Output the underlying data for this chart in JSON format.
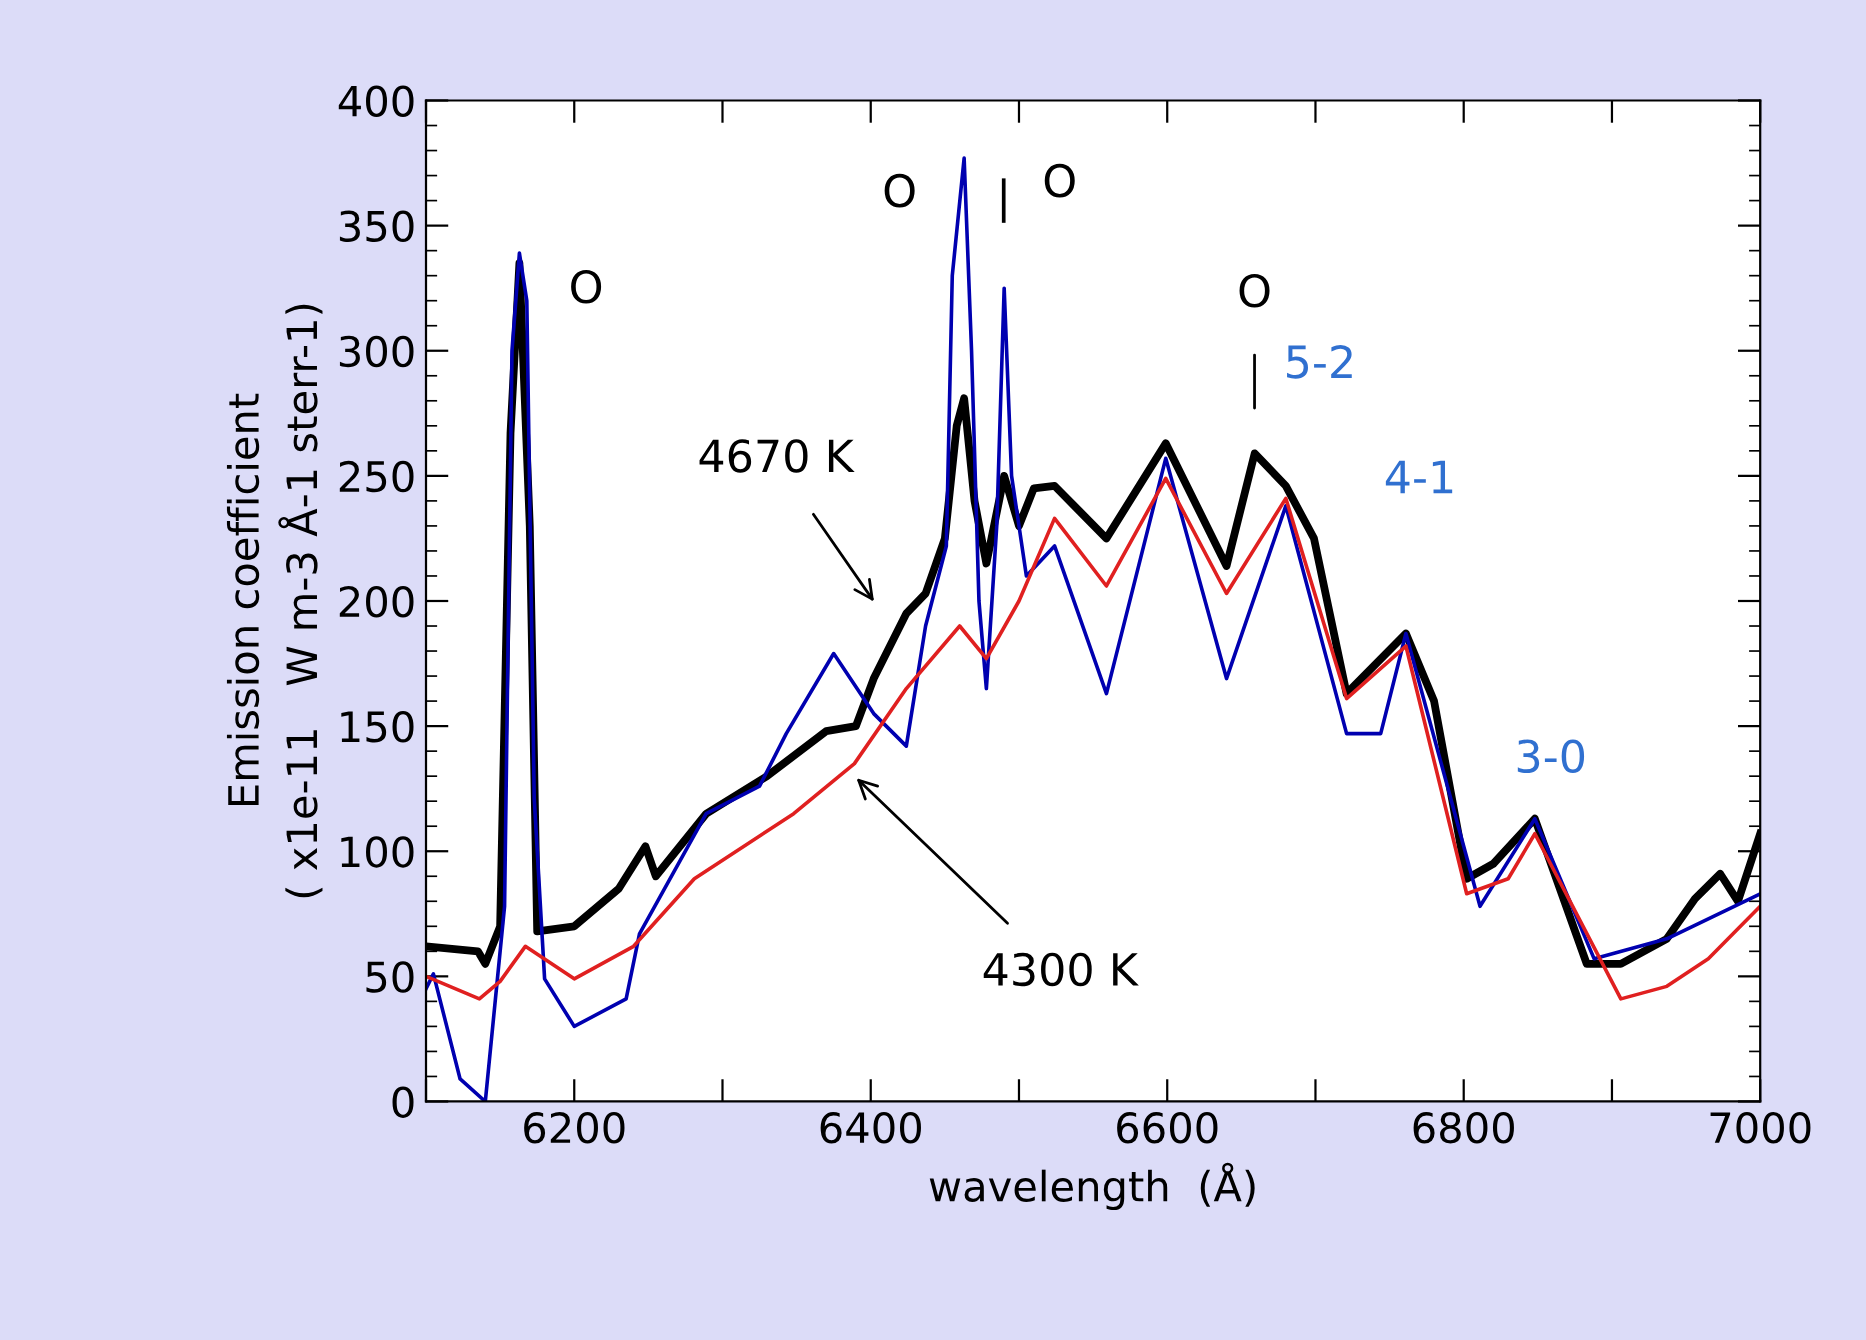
{
  "chart_data": {
    "type": "line",
    "xlabel": "wavelength  (Å)",
    "ylabel": "Emission coefficient\n( x1e-11   W m-3 Å-1 sterr-1)",
    "xlim": [
      6100,
      7000
    ],
    "ylim": [
      0,
      400
    ],
    "xticks": [
      {
        "value": 6100,
        "label": null
      },
      6200,
      {
        "value": 6300,
        "label": null
      },
      6400,
      {
        "value": 6500,
        "label": null
      },
      6600,
      {
        "value": 6700,
        "label": null
      },
      6800,
      {
        "value": 6900,
        "label": null
      },
      7000
    ],
    "yticks": [
      0,
      50,
      100,
      150,
      200,
      250,
      300,
      350,
      400
    ],
    "grid": false,
    "legend": false,
    "marker": "none",
    "line_style": "solid",
    "series": [
      {
        "color": "#000000",
        "x": [
          6100,
          6135,
          6140,
          6150,
          6157,
          6163,
          6170,
          6175,
          6200,
          6230,
          6248,
          6255,
          6289,
          6330,
          6370,
          6390,
          6402,
          6424,
          6437,
          6450,
          6458,
          6463,
          6470,
          6478,
          6490,
          6500,
          6510,
          6524,
          6559,
          6599,
          6640,
          6659,
          6680,
          6699,
          6721,
          6761,
          6780,
          6802,
          6820,
          6848,
          6883,
          6906,
          6937,
          6956,
          6973,
          6985,
          7000
        ],
        "values": [
          62,
          60,
          55,
          70,
          267,
          335,
          230,
          68,
          70,
          85,
          102,
          90,
          115,
          130,
          148,
          150,
          169,
          195,
          203,
          225,
          270,
          281,
          240,
          215,
          250,
          230,
          245,
          246,
          225,
          263,
          214,
          259,
          246,
          225,
          163,
          187,
          160,
          89,
          95,
          113,
          55,
          55,
          65,
          81,
          91,
          80,
          107
        ]
      },
      {
        "color": "#0000b0",
        "x": [
          6100,
          6105,
          6123,
          6140,
          6153,
          6158,
          6163,
          6168,
          6173,
          6180,
          6200,
          6235,
          6244,
          6289,
          6325,
          6343,
          6375,
          6402,
          6424,
          6437,
          6451,
          6455,
          6463,
          6468,
          6473,
          6478,
          6485,
          6490,
          6495,
          6505,
          6524,
          6559,
          6599,
          6640,
          6680,
          6721,
          6744,
          6761,
          6811,
          6848,
          6888,
          6937,
          7000
        ],
        "values": [
          45,
          51,
          9,
          0,
          78,
          300,
          339,
          320,
          121,
          49,
          30,
          41,
          67,
          115,
          126,
          147,
          179,
          155,
          142,
          190,
          222,
          330,
          377,
          300,
          200,
          165,
          230,
          325,
          250,
          210,
          222,
          163,
          257,
          169,
          238,
          147,
          147,
          187,
          78,
          113,
          57,
          65,
          83
        ]
      },
      {
        "color": "#e02020",
        "x": [
          6100,
          6136,
          6150,
          6167,
          6200,
          6240,
          6281,
          6348,
          6389,
          6424,
          6460,
          6478,
          6500,
          6524,
          6559,
          6599,
          6640,
          6680,
          6721,
          6761,
          6802,
          6830,
          6848,
          6906,
          6937,
          6965,
          7000
        ],
        "values": [
          50,
          41,
          48,
          62,
          49,
          62,
          89,
          115,
          135,
          165,
          190,
          177,
          200,
          233,
          206,
          249,
          203,
          241,
          161,
          182,
          83,
          89,
          107,
          41,
          46,
          57,
          78
        ]
      }
    ],
    "annotations": [
      "O",
      "O",
      "|",
      "O",
      "O",
      "5-2",
      "4-1",
      "3-0",
      "4670 K",
      {
        "text": "4300 K",
        "x": 6389,
        "y": 130
      }
    ]
  }
}
